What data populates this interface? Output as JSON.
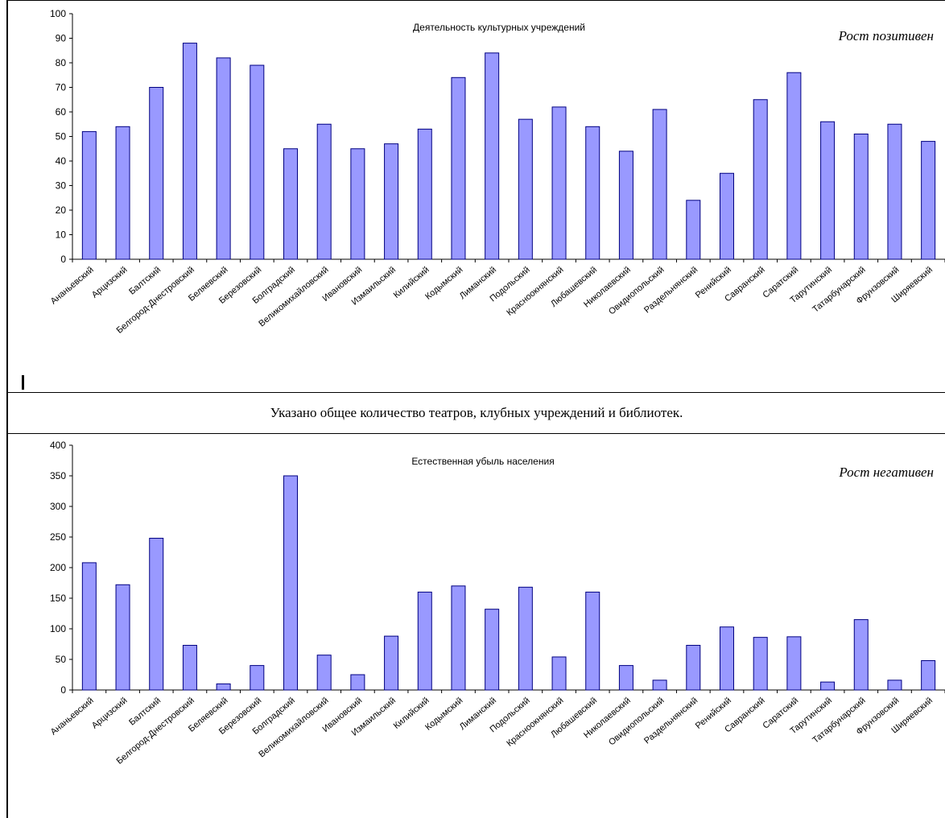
{
  "caption": "Указано общее количество театров, клубных учреждений и библиотек.",
  "colors": {
    "bar_fill": "#9999ff",
    "bar_stroke": "#000080",
    "axis": "#000000"
  },
  "chart_data": [
    {
      "type": "bar",
      "title": "Деятельность культурных учреждений",
      "note": "Рост позитивен",
      "ylim": [
        0,
        100
      ],
      "yticks": [
        0,
        10,
        20,
        30,
        40,
        50,
        60,
        70,
        80,
        90,
        100
      ],
      "categories": [
        "Ананьевский",
        "Арцизский",
        "Балтский",
        "Белгород-Днестровский",
        "Беляевский",
        "Березовский",
        "Болградский",
        "Великомихайловский",
        "Ивановский",
        "Измаильский",
        "Килийский",
        "Кодымский",
        "Лиманский",
        "Подольский",
        "Красноокнянский",
        "Любашевский",
        "Николаевский",
        "Овидиопольский",
        "Раздельнянский",
        "Ренийский",
        "Савранский",
        "Саратский",
        "Тарутинский",
        "Татарбунарский",
        "Фрунзовский",
        "Ширяевский"
      ],
      "values": [
        52,
        54,
        70,
        88,
        82,
        79,
        45,
        55,
        45,
        47,
        53,
        74,
        84,
        57,
        62,
        54,
        44,
        61,
        24,
        35,
        65,
        76,
        56,
        51,
        55,
        48
      ]
    },
    {
      "type": "bar",
      "title": "Естественная убыль населения",
      "note": "Рост негативен",
      "ylim": [
        0,
        400
      ],
      "yticks": [
        0,
        50,
        100,
        150,
        200,
        250,
        300,
        350,
        400
      ],
      "categories": [
        "Ананьевский",
        "Арцизский",
        "Балтский",
        "Белгород-Днестровский",
        "Беляевский",
        "Березовский",
        "Болградский",
        "Великомихайловский",
        "Ивановский",
        "Измаильский",
        "Килийский",
        "Кодымский",
        "Лиманский",
        "Подольский",
        "Красноокнянский",
        "Любашевский",
        "Николаевский",
        "Овидиопольский",
        "Раздельнянский",
        "Ренийский",
        "Савранский",
        "Саратский",
        "Тарутинский",
        "Татарбунарский",
        "Фрунзовский",
        "Ширяевский"
      ],
      "values": [
        208,
        172,
        248,
        73,
        10,
        40,
        350,
        57,
        25,
        88,
        160,
        170,
        132,
        168,
        54,
        160,
        40,
        16,
        73,
        103,
        86,
        87,
        13,
        115,
        16,
        48
      ]
    }
  ]
}
